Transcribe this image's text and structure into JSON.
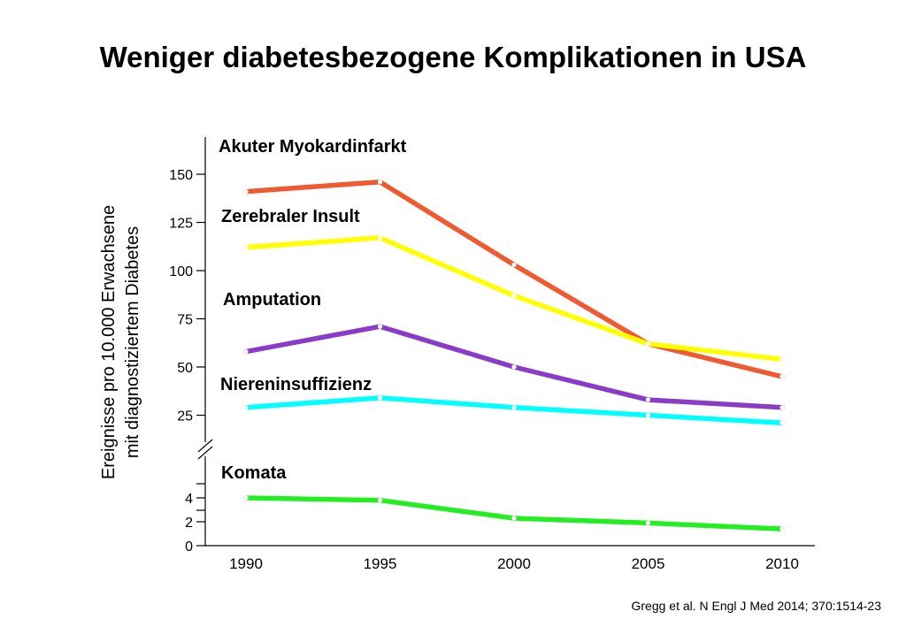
{
  "title": "Weniger diabetesbezogene Komplikationen in USA",
  "citation": "Gregg et al. N Engl J Med 2014; 370:1514-23",
  "chart_data": {
    "type": "line",
    "ylabel_line1": "Ereignisse pro 10.000 Erwachsene",
    "ylabel_line2": "mit diagnostiziertem Diabetes",
    "x": [
      1990,
      1995,
      2000,
      2005,
      2010
    ],
    "x_tick_labels": [
      "1990",
      "1995",
      "2000",
      "2005",
      "2010"
    ],
    "upper_y_ticks": [
      "150",
      "125",
      "100",
      "75",
      "50",
      "25"
    ],
    "upper_y_tick_values": [
      150,
      125,
      100,
      75,
      50,
      25
    ],
    "lower_y_ticks": [
      "4",
      "2",
      "0"
    ],
    "lower_y_tick_values": [
      4,
      2,
      0
    ],
    "axis_break": true,
    "grid": false,
    "series": [
      {
        "name": "Akuter Myokardinfarkt",
        "panel": "upper",
        "color": "#f05a32",
        "values": [
          141,
          146,
          103,
          62,
          45
        ]
      },
      {
        "name": "Zerebraler Insult",
        "panel": "upper",
        "color": "#ffff00",
        "values": [
          112,
          117,
          87,
          62,
          54
        ]
      },
      {
        "name": "Amputation",
        "panel": "upper",
        "color": "#8a3cc8",
        "values": [
          58,
          71,
          50,
          33,
          29
        ]
      },
      {
        "name": "Niereninsuffizienz",
        "panel": "upper",
        "color": "#00ffff",
        "values": [
          29,
          34,
          29,
          25,
          21
        ]
      },
      {
        "name": "Komata",
        "panel": "lower",
        "color": "#22ee22",
        "values": [
          4.0,
          3.8,
          2.3,
          1.9,
          1.4
        ]
      }
    ]
  }
}
